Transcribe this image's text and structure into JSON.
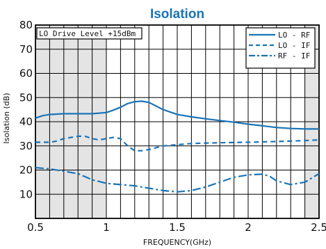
{
  "chart_data": {
    "type": "line",
    "title": "Isolation",
    "xlabel": "FREQUENCY(GHz)",
    "ylabel": "Isolation (dB)",
    "xlim": [
      0.5,
      2.5
    ],
    "ylim": [
      0,
      80
    ],
    "x_ticks": [
      "0.5",
      "1",
      "1.5",
      "2",
      "2.5"
    ],
    "y_ticks": [
      "10",
      "20",
      "30",
      "40",
      "50",
      "60",
      "70",
      "80"
    ],
    "x_minor_step": 0.1,
    "y_step": 10,
    "shaded_x_ranges": [
      [
        0.5,
        1.0
      ],
      [
        2.4,
        2.5
      ]
    ],
    "annotation": "LO Drive Level +15dBm",
    "legend_position": "top-right",
    "colors": {
      "series": "#1a74b8",
      "shade": "#e4e4e4",
      "grid": "#000000",
      "title": "#1a74b8"
    },
    "series": [
      {
        "name": "LO - RF",
        "style": "solid",
        "x": [
          0.5,
          0.55,
          0.6,
          0.7,
          0.8,
          0.9,
          1.0,
          1.05,
          1.1,
          1.15,
          1.2,
          1.25,
          1.3,
          1.35,
          1.4,
          1.5,
          1.6,
          1.7,
          1.8,
          1.9,
          2.0,
          2.1,
          2.2,
          2.3,
          2.4,
          2.5
        ],
        "y": [
          41.5,
          42.5,
          43.0,
          43.3,
          43.3,
          43.3,
          43.8,
          44.8,
          46.0,
          47.5,
          48.3,
          48.5,
          48.0,
          46.5,
          45.0,
          43.0,
          42.0,
          41.2,
          40.5,
          39.8,
          39.0,
          38.3,
          37.6,
          37.2,
          37.0,
          37.0
        ]
      },
      {
        "name": "LO - IF",
        "style": "dashed",
        "x": [
          0.5,
          0.6,
          0.65,
          0.7,
          0.75,
          0.8,
          0.85,
          0.9,
          0.95,
          1.0,
          1.05,
          1.1,
          1.15,
          1.2,
          1.25,
          1.3,
          1.4,
          1.5,
          1.6,
          1.8,
          2.0,
          2.2,
          2.4,
          2.5
        ],
        "y": [
          31.5,
          31.5,
          32.0,
          33.0,
          33.5,
          34.0,
          34.0,
          33.0,
          32.5,
          33.0,
          33.5,
          33.0,
          30.0,
          28.0,
          28.0,
          28.5,
          30.0,
          30.5,
          31.0,
          31.3,
          31.5,
          31.8,
          32.2,
          32.5
        ]
      },
      {
        "name": "RF - IF",
        "style": "dashdot",
        "x": [
          0.5,
          0.6,
          0.7,
          0.8,
          0.9,
          1.0,
          1.1,
          1.2,
          1.3,
          1.4,
          1.5,
          1.6,
          1.7,
          1.8,
          1.9,
          2.0,
          2.1,
          2.15,
          2.2,
          2.3,
          2.4,
          2.5
        ],
        "y": [
          21.0,
          20.5,
          19.5,
          18.5,
          16.0,
          14.5,
          14.0,
          13.5,
          12.5,
          11.5,
          11.0,
          11.5,
          13.0,
          15.0,
          17.0,
          18.0,
          18.3,
          17.5,
          15.5,
          14.0,
          15.0,
          18.5
        ]
      }
    ]
  }
}
